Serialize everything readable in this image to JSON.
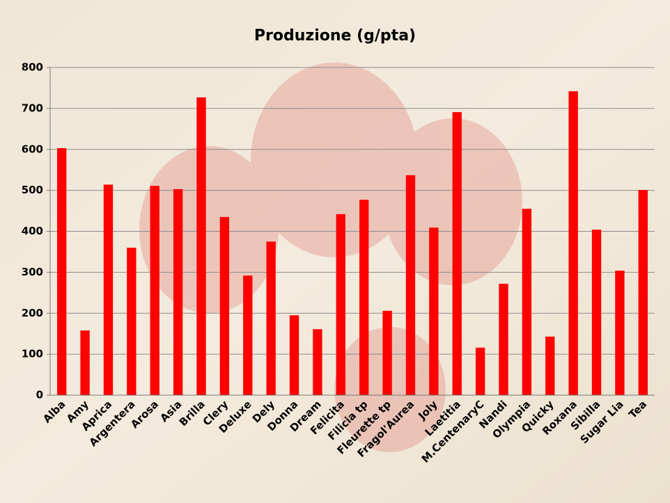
{
  "chart_data": {
    "type": "bar",
    "title": "Produzione (g/pta)",
    "categories": [
      "Alba",
      "Amy",
      "Aprica",
      "Argentera",
      "Arosa",
      "Asia",
      "Brilla",
      "Clery",
      "Deluxe",
      "Dely",
      "Donna",
      "Dream",
      "Felicita",
      "Filicia tp",
      "Fleurette tp",
      "Fragol'Aurea",
      "Joly",
      "Laetitia",
      "M.CentenaryC",
      "Nandi",
      "Olympia",
      "Quicky",
      "Roxana",
      "Sibilla",
      "Sugar Lia",
      "Tea"
    ],
    "values": [
      603,
      158,
      514,
      360,
      511,
      503,
      727,
      435,
      292,
      375,
      195,
      161,
      442,
      477,
      206,
      537,
      409,
      691,
      116,
      272,
      455,
      143,
      742,
      404,
      304,
      501
    ],
    "color": "#ff0000",
    "ylim": [
      0,
      800
    ],
    "yticks": [
      0,
      100,
      200,
      300,
      400,
      500,
      600,
      700,
      800
    ],
    "grid": true
  }
}
